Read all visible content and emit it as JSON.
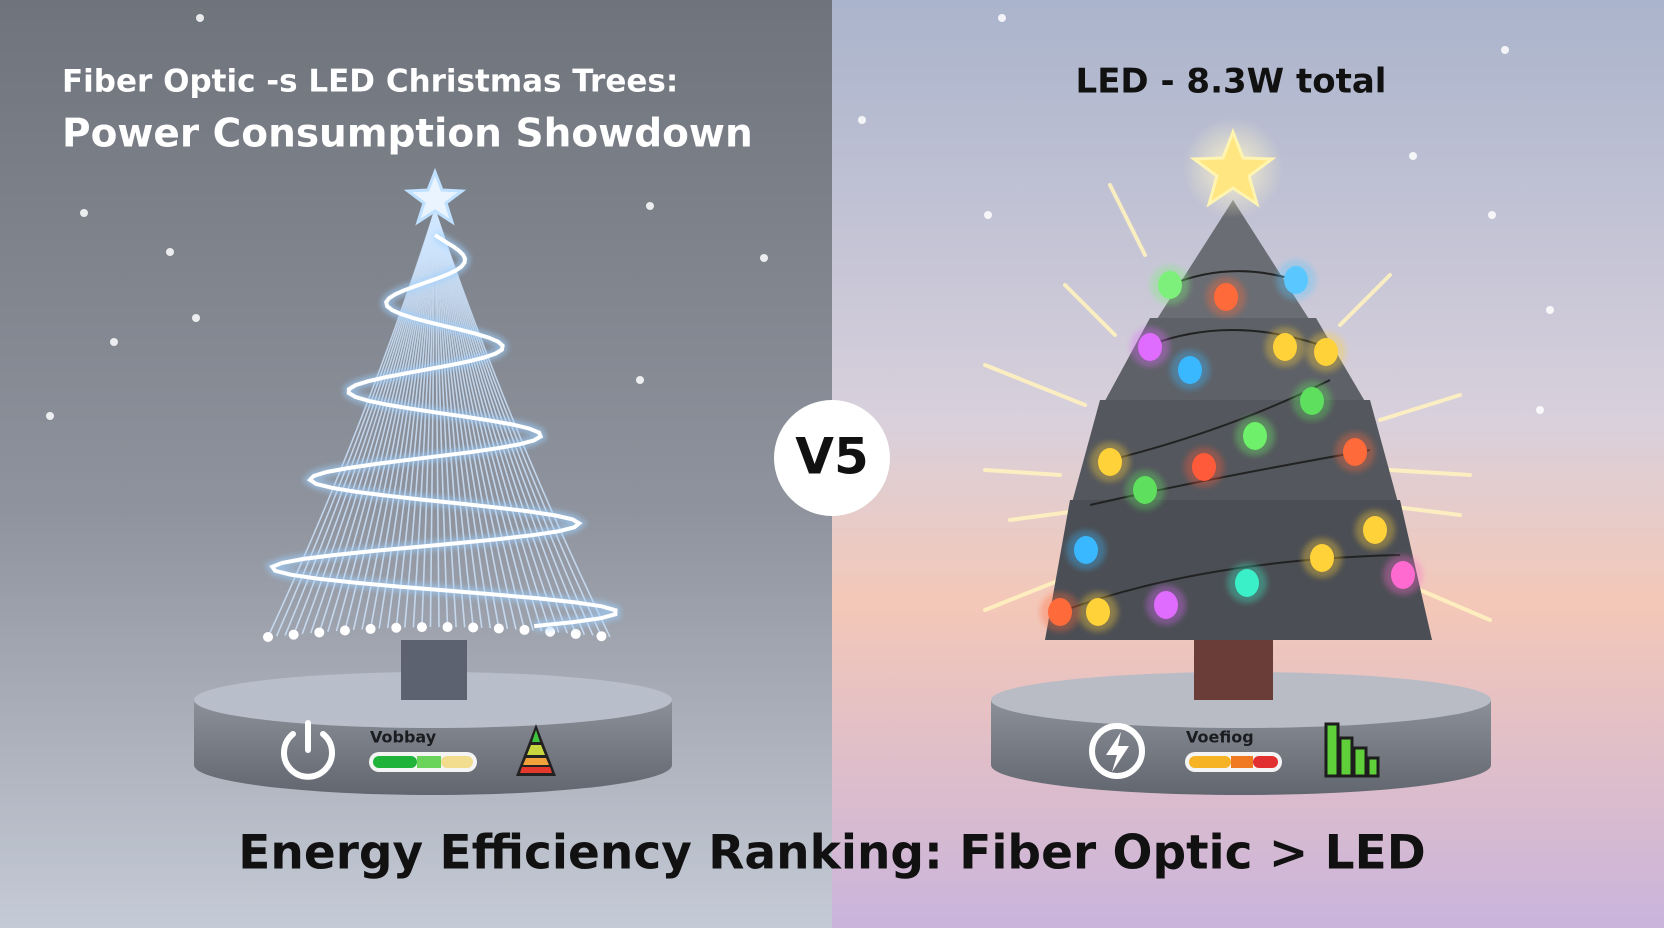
{
  "header": {
    "title_line1": "Fiber Optic -s LED Christmas Trees:",
    "title_line2": "Power Consumption Showdown",
    "right_title": "LED - 8.3W total"
  },
  "versus": "V5",
  "left_base": {
    "label": "Vobbay"
  },
  "right_base": {
    "label": "Voefiog"
  },
  "footer": {
    "text": "Energy Efficiency Ranking: Fiber Optic > LED"
  }
}
